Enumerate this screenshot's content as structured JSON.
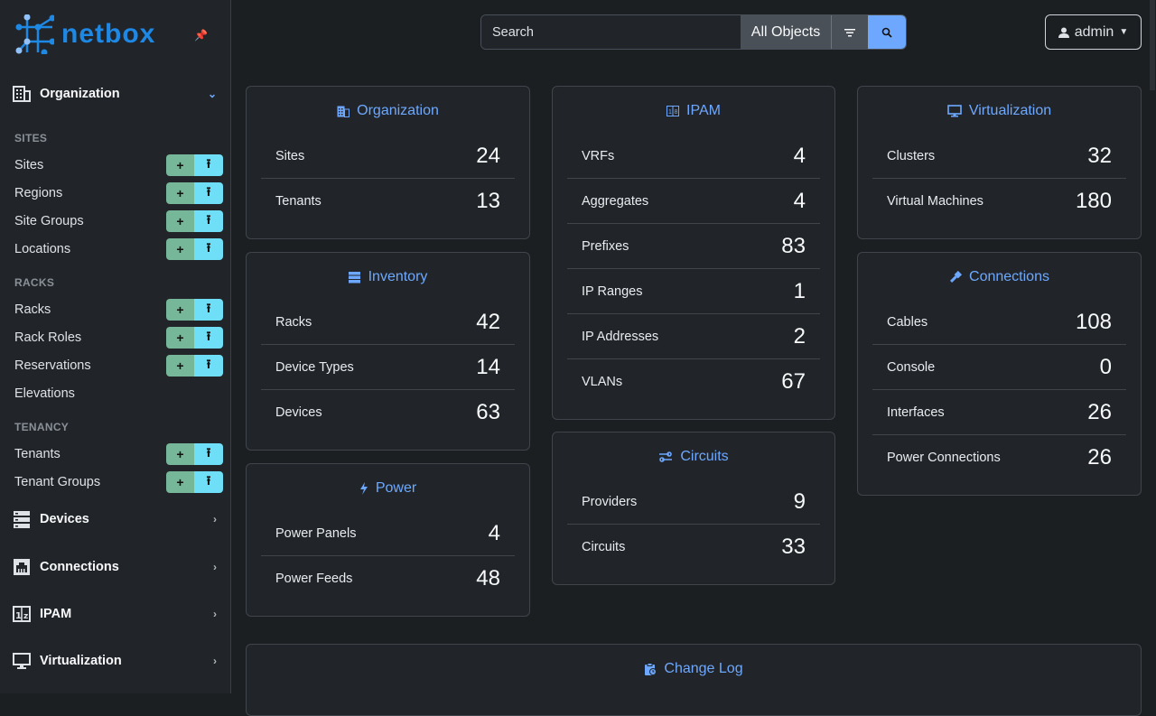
{
  "brand": "netbox",
  "sidebar": {
    "menus": [
      {
        "label": "Organization",
        "icon": "building-icon",
        "expanded": true
      },
      {
        "label": "Devices",
        "icon": "server-icon"
      },
      {
        "label": "Connections",
        "icon": "ethernet-icon"
      },
      {
        "label": "IPAM",
        "icon": "ip-network-icon"
      },
      {
        "label": "Virtualization",
        "icon": "monitor-icon"
      }
    ],
    "sections": [
      "SITES",
      "RACKS",
      "TENANCY"
    ],
    "items": [
      {
        "label": "Sites",
        "buttons": true
      },
      {
        "label": "Regions",
        "buttons": true
      },
      {
        "label": "Site Groups",
        "buttons": true
      },
      {
        "label": "Locations",
        "buttons": true
      },
      {
        "label": "Racks",
        "buttons": true
      },
      {
        "label": "Rack Roles",
        "buttons": true
      },
      {
        "label": "Reservations",
        "buttons": true
      },
      {
        "label": "Elevations",
        "buttons": false
      },
      {
        "label": "Tenants",
        "buttons": true
      },
      {
        "label": "Tenant Groups",
        "buttons": true
      }
    ],
    "add_icon": "+",
    "import_icon": "⭱"
  },
  "search": {
    "placeholder": "Search",
    "scope": "All Objects"
  },
  "user": {
    "label": "admin"
  },
  "cards": {
    "organization": {
      "title": "Organization",
      "rows": [
        {
          "label": "Sites",
          "value": "24"
        },
        {
          "label": "Tenants",
          "value": "13"
        }
      ]
    },
    "inventory": {
      "title": "Inventory",
      "rows": [
        {
          "label": "Racks",
          "value": "42"
        },
        {
          "label": "Device Types",
          "value": "14"
        },
        {
          "label": "Devices",
          "value": "63"
        }
      ]
    },
    "power": {
      "title": "Power",
      "rows": [
        {
          "label": "Power Panels",
          "value": "4"
        },
        {
          "label": "Power Feeds",
          "value": "48"
        }
      ]
    },
    "ipam": {
      "title": "IPAM",
      "rows": [
        {
          "label": "VRFs",
          "value": "4"
        },
        {
          "label": "Aggregates",
          "value": "4"
        },
        {
          "label": "Prefixes",
          "value": "83"
        },
        {
          "label": "IP Ranges",
          "value": "1"
        },
        {
          "label": "IP Addresses",
          "value": "2"
        },
        {
          "label": "VLANs",
          "value": "67"
        }
      ]
    },
    "circuits": {
      "title": "Circuits",
      "rows": [
        {
          "label": "Providers",
          "value": "9"
        },
        {
          "label": "Circuits",
          "value": "33"
        }
      ]
    },
    "virtualization": {
      "title": "Virtualization",
      "rows": [
        {
          "label": "Clusters",
          "value": "32"
        },
        {
          "label": "Virtual Machines",
          "value": "180"
        }
      ]
    },
    "connections": {
      "title": "Connections",
      "rows": [
        {
          "label": "Cables",
          "value": "108"
        },
        {
          "label": "Console",
          "value": "0"
        },
        {
          "label": "Interfaces",
          "value": "26"
        },
        {
          "label": "Power Connections",
          "value": "26"
        }
      ]
    },
    "changelog": {
      "title": "Change Log"
    }
  },
  "colors": {
    "accent": "#6ea8fe",
    "add": "#75b798",
    "import": "#6edff6",
    "pin": "#ffc107"
  }
}
